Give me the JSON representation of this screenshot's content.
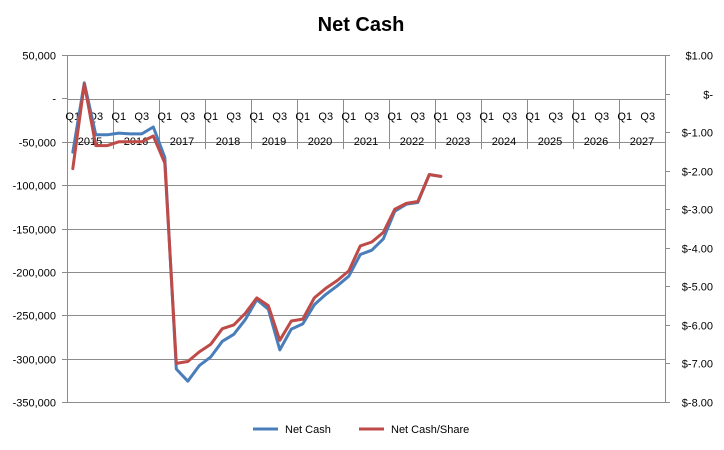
{
  "chart_data": {
    "type": "line",
    "title": "Net Cash",
    "quarter_labels": [
      "Q1",
      "Q3"
    ],
    "years": [
      "2015",
      "2016",
      "2017",
      "2018",
      "2019",
      "2020",
      "2021",
      "2022",
      "2023",
      "2024",
      "2025",
      "2026",
      "2027"
    ],
    "left_axis": {
      "ticks": [
        50000,
        0,
        -50000,
        -100000,
        -150000,
        -200000,
        -250000,
        -300000,
        -350000
      ],
      "tick_labels": [
        "50,000",
        "-",
        "-50,000",
        "-100,000",
        "-150,000",
        "-200,000",
        "-250,000",
        "-300,000",
        "-350,000"
      ],
      "ylim": [
        -350000,
        50000
      ]
    },
    "right_axis": {
      "ticks": [
        1,
        0,
        -1,
        -2,
        -3,
        -4,
        -5,
        -6,
        -7,
        -8
      ],
      "tick_labels": [
        "$1.00",
        "$-",
        "$-1.00",
        "$-2.00",
        "$-3.00",
        "$-4.00",
        "$-5.00",
        "$-6.00",
        "$-7.00",
        "$-8.00"
      ],
      "ylim": [
        -8,
        1
      ]
    },
    "series": [
      {
        "name": "Net Cash",
        "axis": "left",
        "color": "#4A7EBB",
        "values": [
          -62000,
          18000,
          -42000,
          -42000,
          -40000,
          -41000,
          -41000,
          -33000,
          -68000,
          -312000,
          -326000,
          -308000,
          -298000,
          -280000,
          -272000,
          -255000,
          -232000,
          -243000,
          -290000,
          -266000,
          -260000,
          -238000,
          -226000,
          -216000,
          -205000,
          -180000,
          -175000,
          -162000,
          -130000,
          -122000,
          -120000,
          -88000,
          -90000
        ]
      },
      {
        "name": "Net Cash/Share",
        "axis": "right",
        "color": "#BE4B48",
        "values": [
          -1.95,
          0.25,
          -1.35,
          -1.35,
          -1.25,
          -1.25,
          -1.25,
          -1.1,
          -1.8,
          -7.0,
          -6.95,
          -6.7,
          -6.5,
          -6.1,
          -6.0,
          -5.7,
          -5.3,
          -5.5,
          -6.4,
          -5.9,
          -5.85,
          -5.3,
          -5.05,
          -4.85,
          -4.6,
          -3.95,
          -3.85,
          -3.6,
          -3.0,
          -2.85,
          -2.8,
          -2.1,
          -2.15
        ]
      }
    ],
    "legend": {
      "position": "bottom",
      "entries": [
        "Net Cash",
        "Net Cash/Share"
      ]
    },
    "grid": true
  }
}
